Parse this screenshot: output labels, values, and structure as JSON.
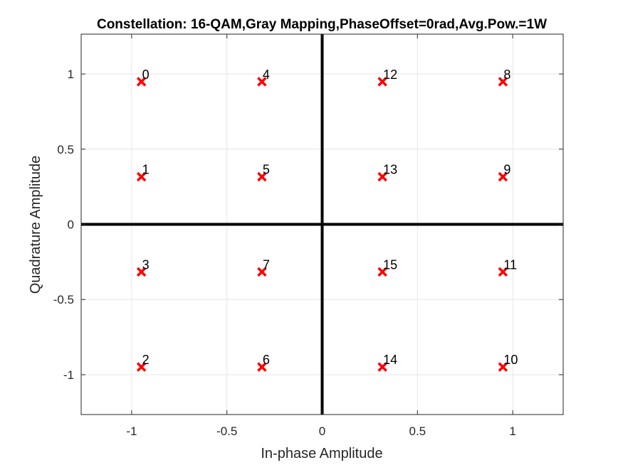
{
  "chart_data": {
    "type": "scatter",
    "title": "Constellation: 16-QAM,Gray Mapping,PhaseOffset=0rad,Avg.Pow.=1W",
    "xlabel": "In-phase Amplitude",
    "ylabel": "Quadrature Amplitude",
    "xlim": [
      -1.2649,
      1.2649
    ],
    "ylim": [
      -1.2649,
      1.2649
    ],
    "xticks": [
      -1,
      -0.5,
      0,
      0.5,
      1
    ],
    "xtick_labels": [
      "-1",
      "-0.5",
      "0",
      "0.5",
      "1"
    ],
    "yticks": [
      -1,
      -0.5,
      0,
      0.5,
      1
    ],
    "ytick_labels": [
      "-1",
      "-0.5",
      "0",
      "0.5",
      "1"
    ],
    "grid": true,
    "marker": "x",
    "marker_color": "#ff0000",
    "axis_line_color": "#000000",
    "points": [
      {
        "label": "0",
        "x": -0.9487,
        "y": 0.9487
      },
      {
        "label": "1",
        "x": -0.9487,
        "y": 0.3162
      },
      {
        "label": "2",
        "x": -0.9487,
        "y": -0.9487
      },
      {
        "label": "3",
        "x": -0.9487,
        "y": -0.3162
      },
      {
        "label": "4",
        "x": -0.3162,
        "y": 0.9487
      },
      {
        "label": "5",
        "x": -0.3162,
        "y": 0.3162
      },
      {
        "label": "6",
        "x": -0.3162,
        "y": -0.9487
      },
      {
        "label": "7",
        "x": -0.3162,
        "y": -0.3162
      },
      {
        "label": "8",
        "x": 0.9487,
        "y": 0.9487
      },
      {
        "label": "9",
        "x": 0.9487,
        "y": 0.3162
      },
      {
        "label": "10",
        "x": 0.9487,
        "y": -0.9487
      },
      {
        "label": "11",
        "x": 0.9487,
        "y": -0.3162
      },
      {
        "label": "12",
        "x": 0.3162,
        "y": 0.9487
      },
      {
        "label": "13",
        "x": 0.3162,
        "y": 0.3162
      },
      {
        "label": "14",
        "x": 0.3162,
        "y": -0.9487
      },
      {
        "label": "15",
        "x": 0.3162,
        "y": -0.3162
      }
    ]
  }
}
